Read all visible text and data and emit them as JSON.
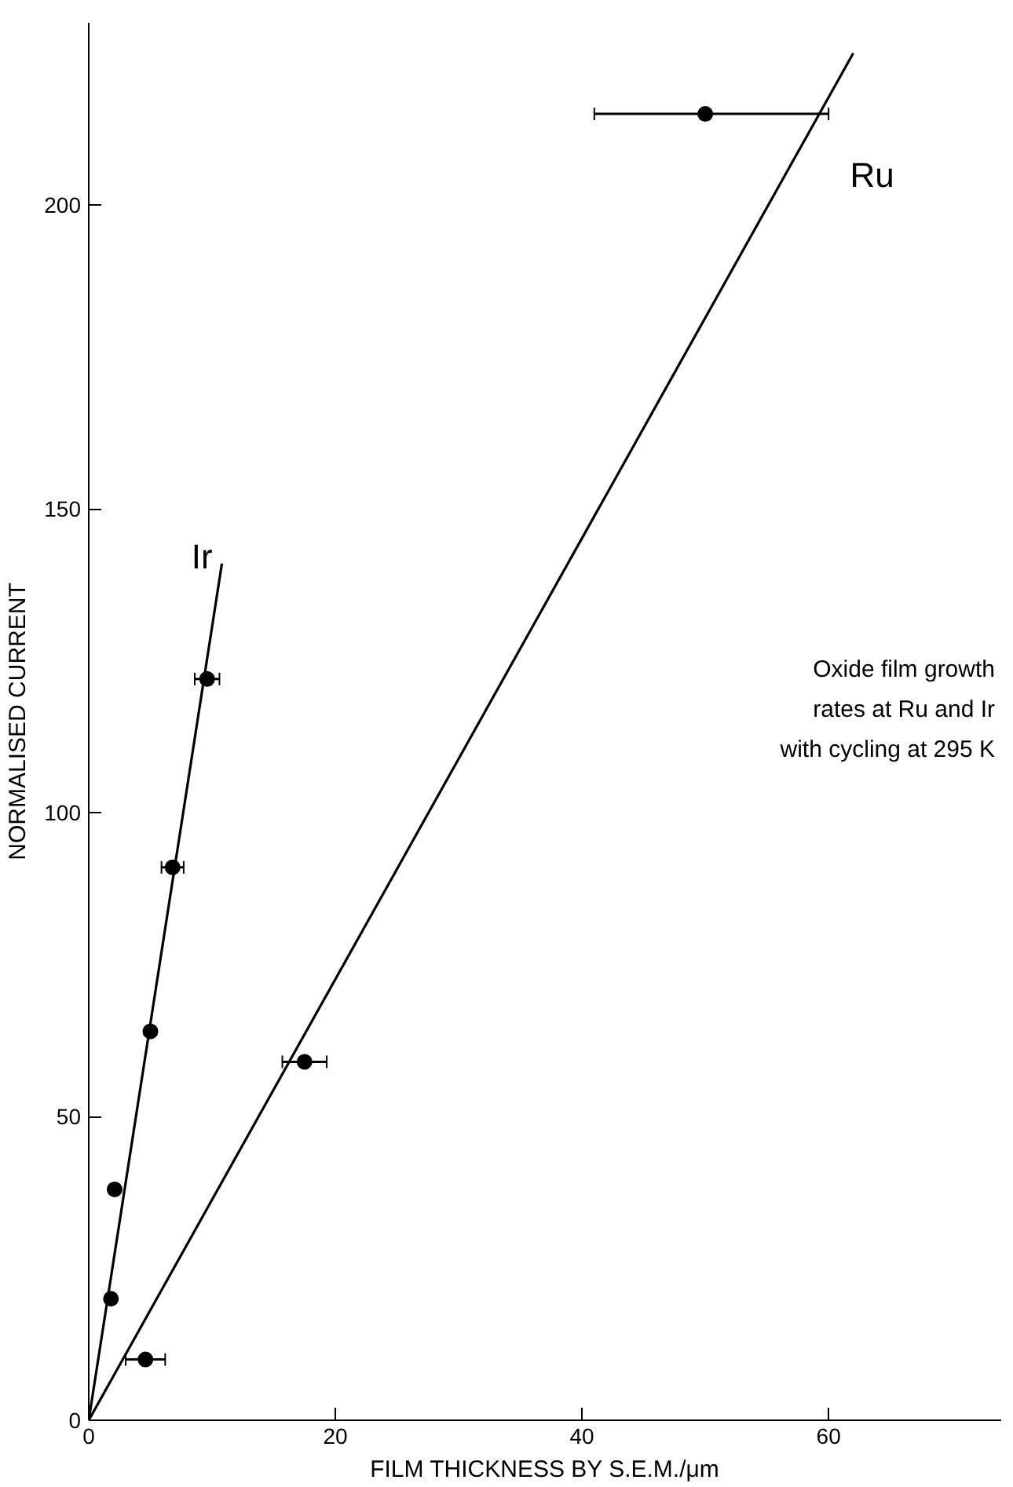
{
  "chart_data": {
    "type": "scatter",
    "xlabel": "FILM THICKNESS BY S.E.M./μm",
    "ylabel": "NORMALISED CURRENT",
    "xlim": [
      0,
      74
    ],
    "ylim": [
      0,
      230
    ],
    "xticks": [
      0,
      20,
      40,
      60
    ],
    "yticks": [
      0,
      50,
      100,
      150,
      200
    ],
    "grid": false,
    "marker": "circle",
    "annotations": [
      "Oxide film growth\nrates at Ru and Ir\nwith cycling at 295 K"
    ],
    "series": [
      {
        "color": "#000000",
        "x": [
          1.8,
          2.1,
          5.0,
          6.8,
          9.6
        ],
        "values": [
          20,
          38,
          64,
          91,
          122
        ],
        "xerrors": [
          null,
          null,
          null,
          0.9,
          1.0
        ]
      },
      {
        "color": "#000000",
        "x": [
          4.6,
          17.5,
          50
        ],
        "values": [
          10,
          59,
          215
        ],
        "xerrors": [
          1.6,
          1.8,
          [
            41,
            60
          ]
        ]
      },
      {
        "type": "line",
        "name": "Ir",
        "color": "#000000",
        "marker": "none",
        "line_style": "solid",
        "x": [
          0,
          10.8
        ],
        "values": [
          0,
          141
        ]
      },
      {
        "type": "line",
        "name": "Ru",
        "color": "#000000",
        "marker": "none",
        "line_style": "solid",
        "x": [
          0,
          62
        ],
        "values": [
          0,
          225
        ]
      }
    ]
  }
}
